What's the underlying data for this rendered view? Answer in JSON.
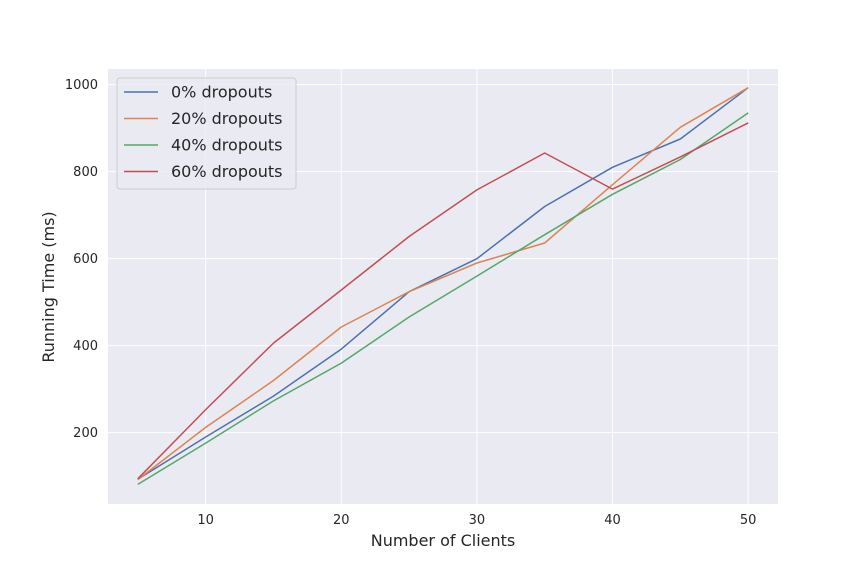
{
  "chart_data": {
    "type": "line",
    "title": "",
    "xlabel": "Number of Clients",
    "ylabel": "Running Time (ms)",
    "x": [
      5,
      10,
      15,
      20,
      25,
      30,
      35,
      40,
      45,
      50
    ],
    "xlim": [
      2.8,
      52.2
    ],
    "ylim": [
      36,
      1036
    ],
    "xticks": [
      10,
      20,
      30,
      40,
      50
    ],
    "yticks": [
      200,
      400,
      600,
      800,
      1000
    ],
    "grid": true,
    "legend_position": "top-left",
    "series": [
      {
        "name": "0% dropouts",
        "color": "#4c72b0",
        "values": [
          93,
          190,
          284,
          392,
          524,
          600,
          720,
          810,
          875,
          993
        ]
      },
      {
        "name": "20% dropouts",
        "color": "#dd8452",
        "values": [
          92,
          212,
          320,
          443,
          524,
          590,
          636,
          770,
          902,
          993
        ]
      },
      {
        "name": "40% dropouts",
        "color": "#55a868",
        "values": [
          81,
          176,
          273,
          360,
          466,
          560,
          655,
          748,
          828,
          935
        ]
      },
      {
        "name": "60% dropouts",
        "color": "#c44e52",
        "values": [
          94,
          253,
          406,
          528,
          651,
          758,
          843,
          760,
          834,
          912
        ]
      }
    ]
  }
}
